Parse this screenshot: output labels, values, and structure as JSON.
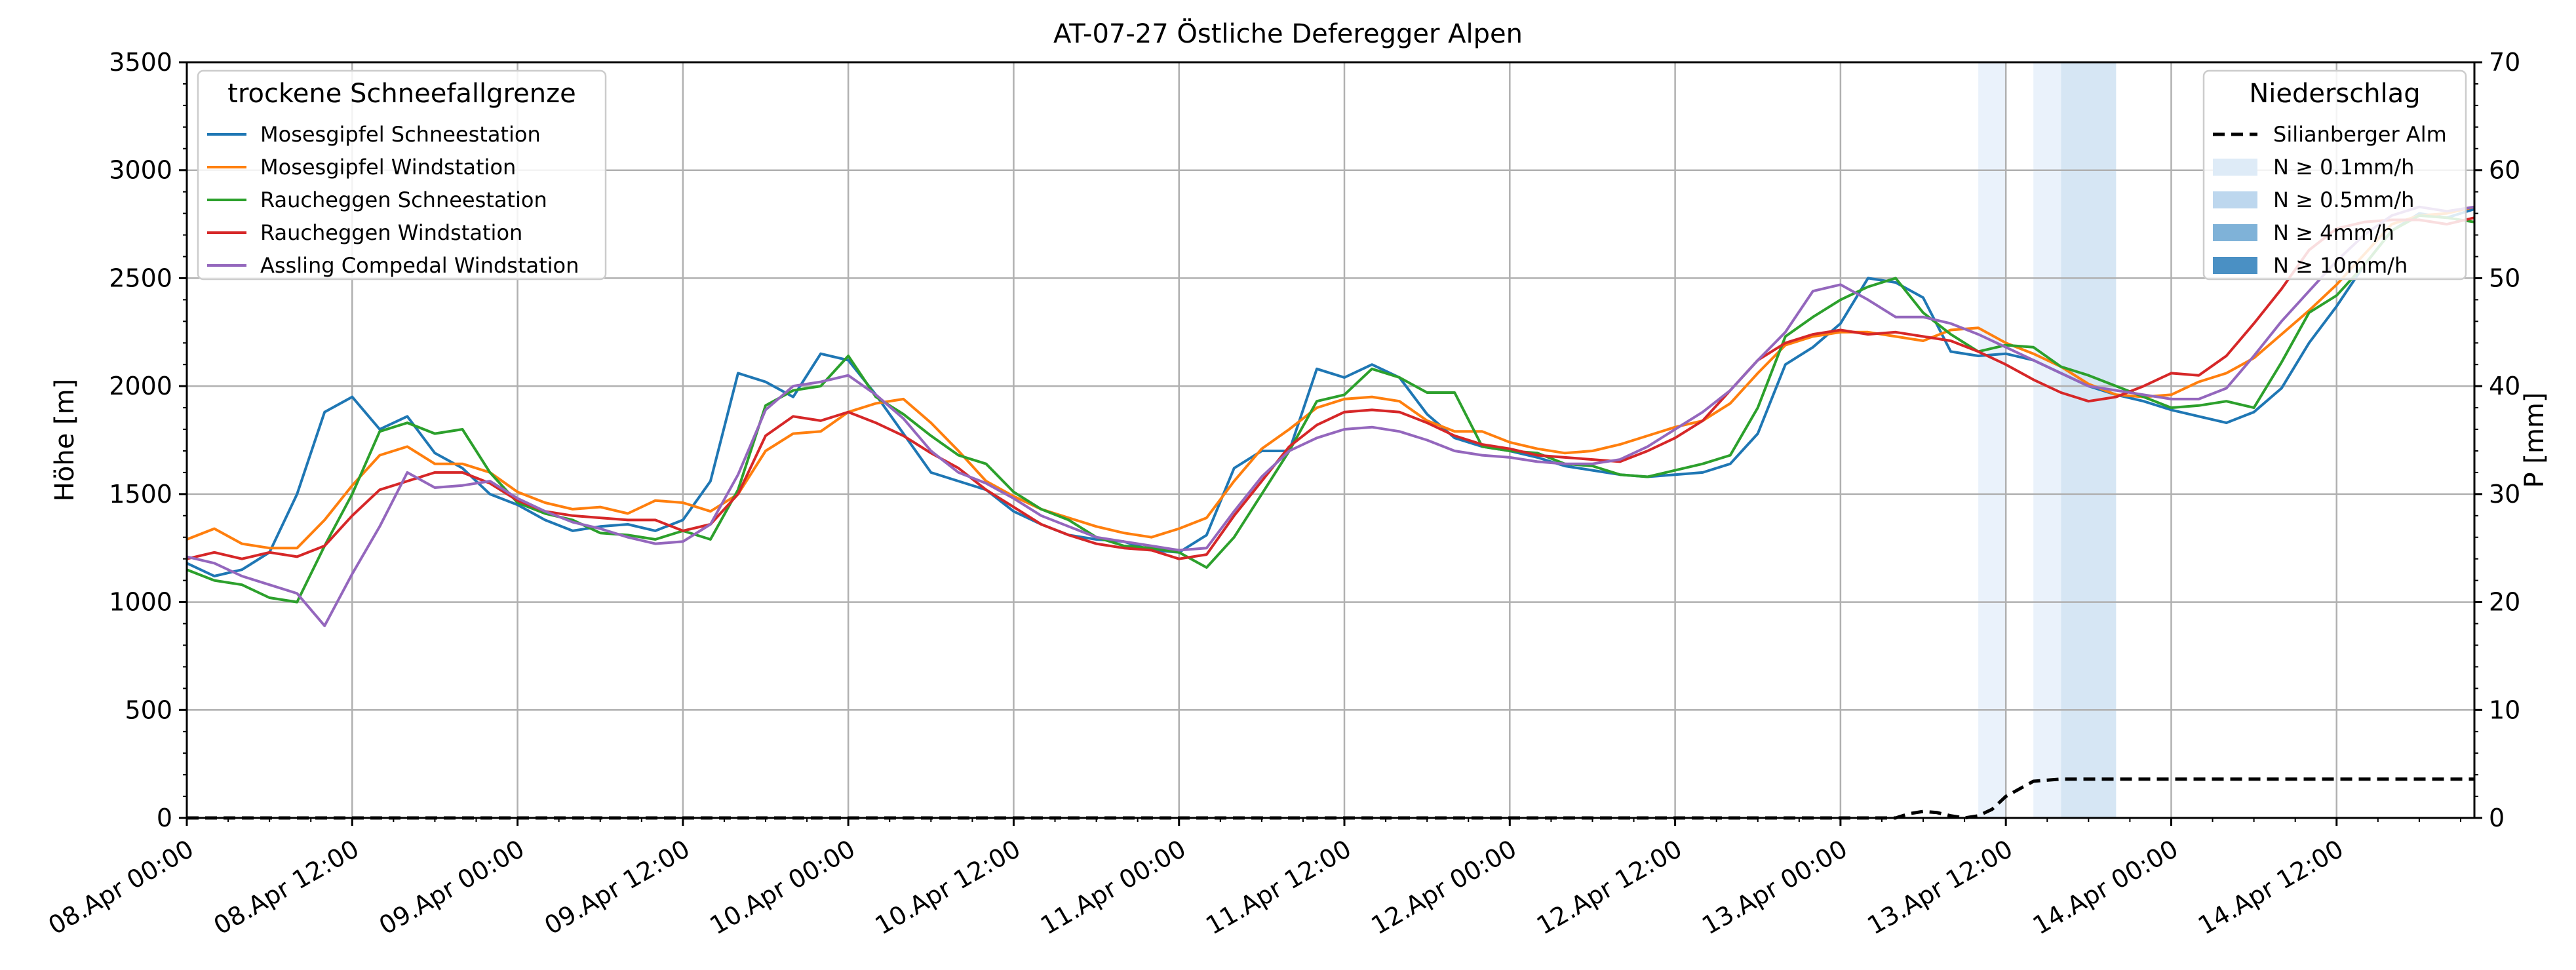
{
  "chart_data": {
    "type": "line",
    "title": "AT-07-27 Östliche Deferegger Alpen",
    "xlabel": "",
    "ylabel": "Höhe [m]",
    "y2label": "P [mm]",
    "xlim": [
      "2024-04-08 00:00",
      "2024-04-14 22:00"
    ],
    "ylim": [
      0,
      3500
    ],
    "y2lim": [
      0,
      70
    ],
    "grid": true,
    "x_tick_labels": [
      "08.Apr 00:00",
      "08.Apr 12:00",
      "09.Apr 00:00",
      "09.Apr 12:00",
      "10.Apr 00:00",
      "10.Apr 12:00",
      "11.Apr 00:00",
      "11.Apr 12:00",
      "12.Apr 00:00",
      "12.Apr 12:00",
      "13.Apr 00:00",
      "13.Apr 12:00",
      "14.Apr 00:00",
      "14.Apr 12:00"
    ],
    "y_ticks": [
      0,
      500,
      1000,
      1500,
      2000,
      2500,
      3000,
      3500
    ],
    "y2_ticks": [
      0,
      10,
      20,
      30,
      40,
      50,
      60,
      70
    ],
    "legend_left": {
      "title": "trockene Schneefallgrenze",
      "placement": "upper-left"
    },
    "legend_right": {
      "title": "Niederschlag",
      "placement": "upper-right",
      "entries": [
        {
          "label": "Silianberger Alm",
          "kind": "dashed-line",
          "color": "#000000"
        },
        {
          "label": "N ≥ 0.1mm/h",
          "kind": "patch",
          "color": "#deebf7"
        },
        {
          "label": "N ≥ 0.5mm/h",
          "kind": "patch",
          "color": "#bdd7ee"
        },
        {
          "label": "N ≥ 4mm/h",
          "kind": "patch",
          "color": "#7fb2d8"
        },
        {
          "label": "N ≥ 10mm/h",
          "kind": "patch",
          "color": "#4a90c4"
        }
      ]
    },
    "shaded_bands": [
      {
        "start": "2024-04-13 10:00",
        "end": "2024-04-13 12:00",
        "intensity": "N ≥ 0.1mm/h",
        "color": "#eaf2fb"
      },
      {
        "start": "2024-04-13 14:00",
        "end": "2024-04-13 16:00",
        "intensity": "N ≥ 0.1mm/h",
        "color": "#eaf2fb"
      },
      {
        "start": "2024-04-13 16:00",
        "end": "2024-04-13 20:00",
        "intensity": "N ≥ 0.5mm/h",
        "color": "#d6e6f4"
      }
    ],
    "series": [
      {
        "name": "Mosesgipfel Schneestation",
        "color": "#1f77b4",
        "x_hours_from_start": [
          0,
          2,
          4,
          6,
          8,
          10,
          12,
          14,
          16,
          18,
          20,
          22,
          24,
          26,
          28,
          30,
          32,
          34,
          36,
          38,
          40,
          42,
          44,
          46,
          48,
          50,
          52,
          54,
          56,
          58,
          60,
          62,
          64,
          66,
          68,
          70,
          72,
          74,
          76,
          78,
          80,
          82,
          84,
          86,
          88,
          90,
          92,
          94,
          96,
          98,
          100,
          102,
          104,
          106,
          108,
          110,
          112,
          114,
          116,
          118,
          120,
          122,
          124,
          126,
          128,
          130,
          132,
          134,
          136,
          138,
          140,
          142,
          144,
          146,
          148,
          150,
          152,
          154,
          156,
          158,
          160,
          162,
          164,
          166
        ],
        "values": [
          1180,
          1120,
          1150,
          1230,
          1500,
          1880,
          1950,
          1800,
          1860,
          1690,
          1620,
          1500,
          1450,
          1380,
          1330,
          1350,
          1360,
          1330,
          1380,
          1560,
          2060,
          2020,
          1950,
          2150,
          2120,
          1960,
          1780,
          1600,
          1560,
          1520,
          1420,
          1360,
          1310,
          1290,
          1280,
          1240,
          1230,
          1310,
          1620,
          1700,
          1700,
          2080,
          2040,
          2100,
          2040,
          1870,
          1760,
          1720,
          1700,
          1670,
          1630,
          1610,
          1590,
          1580,
          1590,
          1600,
          1640,
          1780,
          2100,
          2180,
          2290,
          2500,
          2480,
          2410,
          2160,
          2140,
          2150,
          2120,
          2060,
          2000,
          1960,
          1930,
          1890,
          1860,
          1830,
          1880,
          1990,
          2200,
          2370,
          2560,
          2720,
          2800,
          2780,
          2820
        ]
      },
      {
        "name": "Mosesgipfel Windstation",
        "color": "#ff7f0e",
        "x_hours_from_start": [
          0,
          2,
          4,
          6,
          8,
          10,
          12,
          14,
          16,
          18,
          20,
          22,
          24,
          26,
          28,
          30,
          32,
          34,
          36,
          38,
          40,
          42,
          44,
          46,
          48,
          50,
          52,
          54,
          56,
          58,
          60,
          62,
          64,
          66,
          68,
          70,
          72,
          74,
          76,
          78,
          80,
          82,
          84,
          86,
          88,
          90,
          92,
          94,
          96,
          98,
          100,
          102,
          104,
          106,
          108,
          110,
          112,
          114,
          116,
          118,
          120,
          122,
          124,
          126,
          128,
          130,
          132,
          134,
          136,
          138,
          140,
          142,
          144,
          146,
          148,
          150,
          152,
          154,
          156,
          158,
          160,
          162,
          164,
          166
        ],
        "values": [
          1290,
          1340,
          1270,
          1250,
          1250,
          1380,
          1540,
          1680,
          1720,
          1640,
          1640,
          1600,
          1510,
          1460,
          1430,
          1440,
          1410,
          1470,
          1460,
          1420,
          1500,
          1700,
          1780,
          1790,
          1880,
          1920,
          1940,
          1830,
          1700,
          1560,
          1490,
          1430,
          1390,
          1350,
          1320,
          1300,
          1340,
          1390,
          1560,
          1710,
          1800,
          1900,
          1940,
          1950,
          1930,
          1840,
          1790,
          1790,
          1740,
          1710,
          1690,
          1700,
          1730,
          1770,
          1810,
          1840,
          1920,
          2060,
          2190,
          2230,
          2250,
          2250,
          2230,
          2210,
          2260,
          2270,
          2200,
          2150,
          2090,
          2010,
          1960,
          1950,
          1960,
          2020,
          2060,
          2130,
          2240,
          2350,
          2470,
          2610,
          2750,
          2790,
          2800,
          2830
        ]
      },
      {
        "name": "Raucheggen Schneestation",
        "color": "#2ca02c",
        "x_hours_from_start": [
          0,
          2,
          4,
          6,
          8,
          10,
          12,
          14,
          16,
          18,
          20,
          22,
          24,
          26,
          28,
          30,
          32,
          34,
          36,
          38,
          40,
          42,
          44,
          46,
          48,
          50,
          52,
          54,
          56,
          58,
          60,
          62,
          64,
          66,
          68,
          70,
          72,
          74,
          76,
          78,
          80,
          82,
          84,
          86,
          88,
          90,
          92,
          94,
          96,
          98,
          100,
          102,
          104,
          106,
          108,
          110,
          112,
          114,
          116,
          118,
          120,
          122,
          124,
          126,
          128,
          130,
          132,
          134,
          136,
          138,
          140,
          142,
          144,
          146,
          148,
          150,
          152,
          154,
          156,
          158,
          160,
          162,
          164,
          166
        ],
        "values": [
          1150,
          1100,
          1080,
          1020,
          1000,
          1260,
          1500,
          1790,
          1830,
          1780,
          1800,
          1600,
          1460,
          1410,
          1380,
          1320,
          1310,
          1290,
          1330,
          1290,
          1520,
          1910,
          1980,
          2000,
          2140,
          1950,
          1870,
          1770,
          1680,
          1640,
          1510,
          1430,
          1380,
          1300,
          1260,
          1250,
          1230,
          1160,
          1300,
          1500,
          1700,
          1930,
          1960,
          2080,
          2040,
          1970,
          1970,
          1720,
          1700,
          1690,
          1640,
          1630,
          1590,
          1580,
          1610,
          1640,
          1680,
          1900,
          2230,
          2320,
          2400,
          2460,
          2500,
          2340,
          2240,
          2160,
          2190,
          2180,
          2090,
          2050,
          2000,
          1950,
          1900,
          1910,
          1930,
          1900,
          2110,
          2340,
          2420,
          2560,
          2720,
          2790,
          2780,
          2760
        ]
      },
      {
        "name": "Raucheggen Windstation",
        "color": "#d62728",
        "x_hours_from_start": [
          0,
          2,
          4,
          6,
          8,
          10,
          12,
          14,
          16,
          18,
          20,
          22,
          24,
          26,
          28,
          30,
          32,
          34,
          36,
          38,
          40,
          42,
          44,
          46,
          48,
          50,
          52,
          54,
          56,
          58,
          60,
          62,
          64,
          66,
          68,
          70,
          72,
          74,
          76,
          78,
          80,
          82,
          84,
          86,
          88,
          90,
          92,
          94,
          96,
          98,
          100,
          102,
          104,
          106,
          108,
          110,
          112,
          114,
          116,
          118,
          120,
          122,
          124,
          126,
          128,
          130,
          132,
          134,
          136,
          138,
          140,
          142,
          144,
          146,
          148,
          150,
          152,
          154,
          156,
          158,
          160,
          162,
          164,
          166
        ],
        "values": [
          1200,
          1230,
          1200,
          1230,
          1210,
          1260,
          1400,
          1520,
          1560,
          1600,
          1600,
          1550,
          1470,
          1420,
          1400,
          1390,
          1380,
          1380,
          1330,
          1360,
          1500,
          1770,
          1860,
          1840,
          1880,
          1830,
          1770,
          1690,
          1620,
          1520,
          1440,
          1360,
          1310,
          1270,
          1250,
          1240,
          1200,
          1220,
          1400,
          1560,
          1720,
          1820,
          1880,
          1890,
          1880,
          1830,
          1770,
          1730,
          1710,
          1680,
          1670,
          1660,
          1650,
          1700,
          1760,
          1840,
          1980,
          2120,
          2200,
          2240,
          2260,
          2240,
          2250,
          2230,
          2210,
          2160,
          2100,
          2030,
          1970,
          1930,
          1950,
          2000,
          2060,
          2050,
          2140,
          2290,
          2450,
          2630,
          2730,
          2760,
          2770,
          2770,
          2750,
          2780
        ]
      },
      {
        "name": "Assling Compedal Windstation",
        "color": "#9467bd",
        "x_hours_from_start": [
          0,
          2,
          4,
          6,
          8,
          10,
          12,
          14,
          16,
          18,
          20,
          22,
          24,
          26,
          28,
          30,
          32,
          34,
          36,
          38,
          40,
          42,
          44,
          46,
          48,
          50,
          52,
          54,
          56,
          58,
          60,
          62,
          64,
          66,
          68,
          70,
          72,
          74,
          76,
          78,
          80,
          82,
          84,
          86,
          88,
          90,
          92,
          94,
          96,
          98,
          100,
          102,
          104,
          106,
          108,
          110,
          112,
          114,
          116,
          118,
          120,
          122,
          124,
          126,
          128,
          130,
          132,
          134,
          136,
          138,
          140,
          142,
          144,
          146,
          148,
          150,
          152,
          154,
          156,
          158,
          160,
          162,
          164,
          166
        ],
        "values": [
          1210,
          1180,
          1120,
          1080,
          1040,
          890,
          1130,
          1350,
          1600,
          1530,
          1540,
          1560,
          1480,
          1420,
          1370,
          1340,
          1300,
          1270,
          1280,
          1360,
          1590,
          1890,
          2000,
          2020,
          2050,
          1960,
          1850,
          1700,
          1600,
          1550,
          1480,
          1400,
          1350,
          1300,
          1280,
          1260,
          1240,
          1250,
          1420,
          1580,
          1700,
          1760,
          1800,
          1810,
          1790,
          1750,
          1700,
          1680,
          1670,
          1650,
          1640,
          1640,
          1660,
          1720,
          1800,
          1880,
          1980,
          2120,
          2250,
          2440,
          2470,
          2400,
          2320,
          2320,
          2290,
          2240,
          2180,
          2120,
          2060,
          2000,
          1980,
          1960,
          1940,
          1940,
          1990,
          2140,
          2300,
          2440,
          2580,
          2700,
          2790,
          2830,
          2810,
          2830
        ]
      },
      {
        "name": "Silianberger Alm",
        "axis": "right",
        "style": "dashed",
        "color": "#000000",
        "x_hours_from_start": [
          0,
          124,
          125,
          126,
          127,
          128,
          129,
          130,
          131,
          132,
          134,
          136,
          138,
          140,
          142,
          144,
          146,
          148,
          150,
          152,
          154,
          156,
          158,
          160,
          162,
          164,
          166
        ],
        "values": [
          0,
          0,
          0.4,
          0.6,
          0.5,
          0.2,
          0,
          0.2,
          0.8,
          2.0,
          3.4,
          3.6,
          3.6,
          3.6,
          3.6,
          3.6,
          3.6,
          3.6,
          3.6,
          3.6,
          3.6,
          3.6,
          3.6,
          3.6,
          3.6,
          3.6,
          3.6
        ]
      }
    ]
  }
}
